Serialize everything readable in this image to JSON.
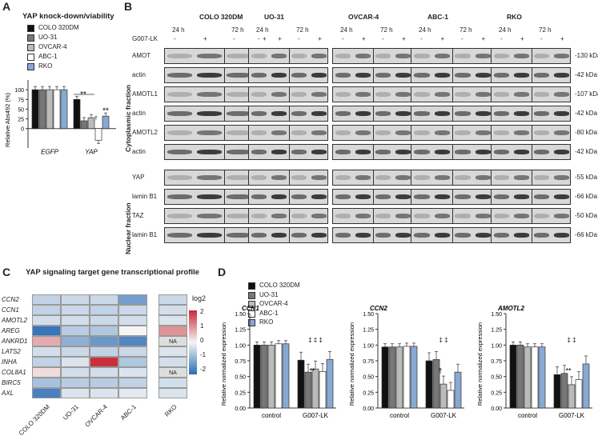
{
  "panels": {
    "A": "A",
    "B": "B",
    "C": "C",
    "D": "D"
  },
  "legend_items": [
    {
      "label": "COLO 320DM",
      "color": "#111111"
    },
    {
      "label": "UO-31",
      "color": "#777777"
    },
    {
      "label": "OVCAR-4",
      "color": "#bbbbbb"
    },
    {
      "label": "ABC-1",
      "color": "#ffffff"
    },
    {
      "label": "RKO",
      "color": "#87a9d3"
    }
  ],
  "panelA": {
    "title": "YAP knock-down/viability",
    "ylabel": "Relative Abs492 (%)",
    "sig1": "**",
    "sig2": "**",
    "dagger": "†"
  },
  "panelB": {
    "cell_lines": [
      "COLO 320DM",
      "UO-31",
      "OVCAR-4",
      "ABC-1",
      "RKO"
    ],
    "time_labels": [
      "24 h",
      "72 h"
    ],
    "treatment_label": "G007-LK",
    "signs": [
      "-",
      "+",
      "-",
      "+"
    ],
    "cyto_rows": [
      "AMOT",
      "actin",
      "AMOTL1",
      "actin",
      "AMOTL2",
      "actin"
    ],
    "cyto_kda": [
      "130 kDa",
      "42 kDa",
      "107 kDa",
      "42 kDa",
      "80 kDa",
      "42 kDa"
    ],
    "nuc_rows": [
      "YAP",
      "lamin B1",
      "TAZ",
      "lamin B1"
    ],
    "nuc_kda": [
      "55 kDa",
      "66 kDa",
      "50 kDa",
      "66 kDa"
    ],
    "cyto_fraction": "Cytoplasmic fraction",
    "nuc_fraction": "Nuclear fraction"
  },
  "panelC": {
    "title": "YAP signaling target gene transcriptional profile",
    "genes": [
      "CCN2",
      "CCN1",
      "AMOTL2",
      "AREG",
      "ANKRD1",
      "LATS2",
      "INHA",
      "COL8A1",
      "BIRC5",
      "AXL"
    ],
    "columns": [
      "COLO 320DM",
      "UO-31",
      "OVCAR-4",
      "ABC-1",
      "RKO"
    ],
    "na": "NA",
    "scale_title": "log2",
    "scale_ticks": [
      "2",
      "1",
      "0",
      "-1",
      "-2"
    ],
    "values": [
      [
        -0.6,
        -0.5,
        -0.5,
        -1.5,
        -0.5
      ],
      [
        -0.6,
        -0.5,
        -0.6,
        -0.5,
        -0.4
      ],
      [
        -0.4,
        -0.4,
        -0.5,
        -0.4,
        -0.3
      ],
      [
        -2.2,
        -0.7,
        -0.8,
        0.0,
        1.2
      ],
      [
        0.9,
        -1.2,
        -1.6,
        -1.9,
        null
      ],
      [
        -0.4,
        -0.5,
        -0.6,
        -0.5,
        -0.3
      ],
      [
        -0.6,
        -0.3,
        2.4,
        -0.8,
        -0.4
      ],
      [
        0.3,
        -0.4,
        -0.4,
        -0.3,
        null
      ],
      [
        -0.9,
        -0.7,
        -0.7,
        -0.6,
        -0.4
      ],
      [
        -2.0,
        -0.3,
        -0.3,
        -0.2,
        -0.3
      ]
    ]
  },
  "panelD": {
    "ylabel": "Relative normalized expression",
    "control": "control",
    "treated": "G007-LK",
    "subplots": [
      {
        "gene": "CCN1",
        "control": [
          1.0,
          1.0,
          1.0,
          1.02,
          1.02
        ],
        "treated": [
          0.76,
          0.57,
          0.62,
          0.58,
          0.77
        ],
        "sig": "**",
        "marks": "‡ ‡ ‡"
      },
      {
        "gene": "CCN2",
        "control": [
          0.97,
          0.97,
          0.97,
          0.98,
          0.98
        ],
        "treated": [
          0.75,
          0.77,
          0.38,
          0.28,
          0.57
        ],
        "sig": "†",
        "marks": "‡ ‡"
      },
      {
        "gene": "AMOTL2",
        "control": [
          1.0,
          1.0,
          0.97,
          0.97,
          0.97
        ],
        "treated": [
          0.53,
          0.55,
          0.37,
          0.45,
          0.7
        ],
        "sig": "**",
        "marks": "‡ ‡"
      }
    ],
    "yticks": [
      "0.00",
      "0.25",
      "0.50",
      "0.75",
      "1.00",
      "1.25",
      "1.50"
    ]
  },
  "chart_data": [
    {
      "type": "bar",
      "title": "YAP knock-down/viability",
      "ylabel": "Relative Abs492 (%)",
      "categories": [
        "EGFP",
        "YAP"
      ],
      "ylim": [
        -50,
        150
      ],
      "series": [
        {
          "name": "COLO 320DM",
          "values": [
            100,
            75
          ]
        },
        {
          "name": "UO-31",
          "values": [
            100,
            20
          ]
        },
        {
          "name": "OVCAR-4",
          "values": [
            100,
            28
          ]
        },
        {
          "name": "ABC-1",
          "values": [
            100,
            -30
          ]
        },
        {
          "name": "RKO",
          "values": [
            100,
            32
          ]
        }
      ]
    },
    {
      "type": "bar",
      "title": "CCN1",
      "ylabel": "Relative normalized expression",
      "categories": [
        "control",
        "G007-LK"
      ],
      "ylim": [
        0,
        1.5
      ],
      "series": [
        {
          "name": "COLO 320DM",
          "values": [
            1.0,
            0.76
          ]
        },
        {
          "name": "UO-31",
          "values": [
            1.0,
            0.57
          ]
        },
        {
          "name": "OVCAR-4",
          "values": [
            1.0,
            0.62
          ]
        },
        {
          "name": "ABC-1",
          "values": [
            1.02,
            0.58
          ]
        },
        {
          "name": "RKO",
          "values": [
            1.02,
            0.77
          ]
        }
      ]
    },
    {
      "type": "bar",
      "title": "CCN2",
      "categories": [
        "control",
        "G007-LK"
      ],
      "ylim": [
        0,
        1.5
      ],
      "series": [
        {
          "name": "COLO 320DM",
          "values": [
            0.97,
            0.75
          ]
        },
        {
          "name": "UO-31",
          "values": [
            0.97,
            0.77
          ]
        },
        {
          "name": "OVCAR-4",
          "values": [
            0.97,
            0.38
          ]
        },
        {
          "name": "ABC-1",
          "values": [
            0.98,
            0.28
          ]
        },
        {
          "name": "RKO",
          "values": [
            0.98,
            0.57
          ]
        }
      ]
    },
    {
      "type": "bar",
      "title": "AMOTL2",
      "categories": [
        "control",
        "G007-LK"
      ],
      "ylim": [
        0,
        1.5
      ],
      "series": [
        {
          "name": "COLO 320DM",
          "values": [
            1.0,
            0.53
          ]
        },
        {
          "name": "UO-31",
          "values": [
            1.0,
            0.55
          ]
        },
        {
          "name": "OVCAR-4",
          "values": [
            0.97,
            0.37
          ]
        },
        {
          "name": "ABC-1",
          "values": [
            0.97,
            0.45
          ]
        },
        {
          "name": "RKO",
          "values": [
            0.97,
            0.7
          ]
        }
      ]
    },
    {
      "type": "heatmap",
      "title": "YAP signaling target gene transcriptional profile",
      "rows": [
        "CCN2",
        "CCN1",
        "AMOTL2",
        "AREG",
        "ANKRD1",
        "LATS2",
        "INHA",
        "COL8A1",
        "BIRC5",
        "AXL"
      ],
      "columns": [
        "COLO 320DM",
        "UO-31",
        "OVCAR-4",
        "ABC-1",
        "RKO"
      ],
      "colorbar_label": "log2",
      "range": [
        -2,
        2
      ]
    }
  ]
}
